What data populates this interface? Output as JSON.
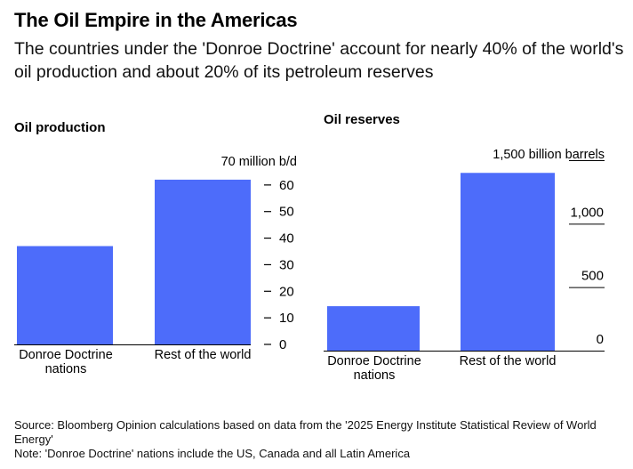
{
  "title": "The Oil Empire in the Americas",
  "subtitle": "The countries under the 'Donroe Doctrine' account for nearly 40% of the world's oil production and about 20% of its petroleum reserves",
  "footer": {
    "source": "Source: Bloomberg Opinion calculations based on data from the '2025 Energy Institute Statistical Review of World Energy'",
    "note": "Note: 'Donroe Doctrine' nations include the US, Canada and all Latin America"
  },
  "colors": {
    "bar": "#4d6cfa",
    "axis": "#000000"
  },
  "chart_data": [
    {
      "type": "bar",
      "title": "Oil production",
      "unit_label": "70 million b/d",
      "categories": [
        "Donroe Doctrine nations",
        "Rest of the world"
      ],
      "category_lines": [
        [
          "Donroe Doctrine",
          "nations"
        ],
        [
          "Rest of the world"
        ]
      ],
      "values": [
        37,
        62
      ],
      "ylim": [
        0,
        70
      ],
      "yticks": [
        0,
        10,
        20,
        30,
        40,
        50,
        60
      ],
      "ytick_labels": [
        "0",
        "10",
        "20",
        "30",
        "40",
        "50",
        "60"
      ]
    },
    {
      "type": "bar",
      "title": "Oil reserves",
      "unit_label": "1,500 billion barrels",
      "categories": [
        "Donroe Doctrine nations",
        "Rest of the world"
      ],
      "category_lines": [
        [
          "Donroe Doctrine",
          "nations"
        ],
        [
          "Rest of the world"
        ]
      ],
      "values": [
        350,
        1400
      ],
      "ylim": [
        0,
        1500
      ],
      "yticks": [
        0,
        500,
        1000
      ],
      "ytick_labels": [
        "0",
        "500",
        "1,000"
      ]
    }
  ]
}
